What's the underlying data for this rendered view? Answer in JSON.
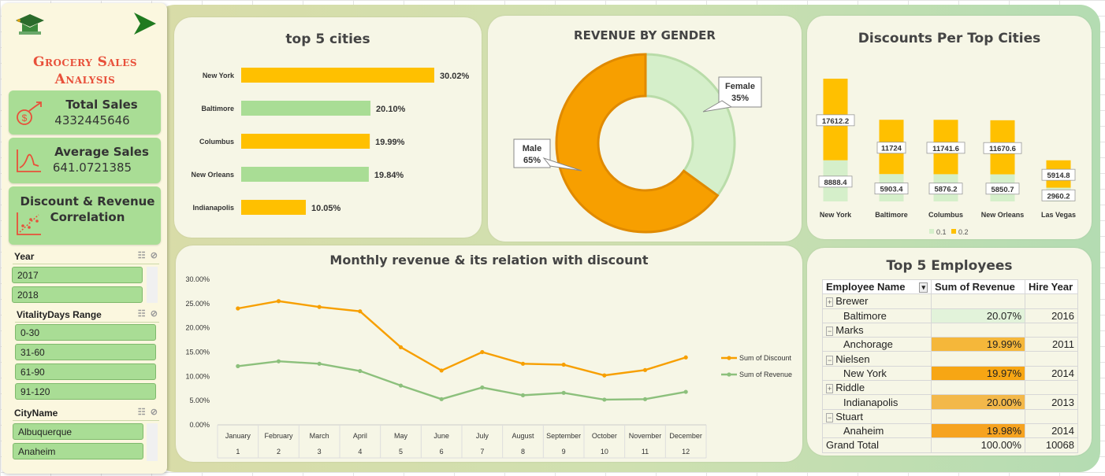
{
  "sidebar": {
    "title": "Grocery Sales Analysis",
    "kpis": [
      {
        "label": "Total Sales",
        "value": "4332445646"
      },
      {
        "label": "Average Sales",
        "value": "641.0721385"
      },
      {
        "label": "Discount & Revenue Correlation",
        "value": ""
      }
    ],
    "slicers": [
      {
        "label": "Year",
        "items": [
          "2017",
          "2018"
        ]
      },
      {
        "label": "VitalityDays Range",
        "items": [
          "0-30",
          "31-60",
          "61-90",
          "91-120"
        ]
      },
      {
        "label": "CityName",
        "items": [
          "Albuquerque",
          "Anaheim"
        ]
      }
    ]
  },
  "colors": {
    "orange": "#ffc000",
    "dark_orange": "#f79f00",
    "light_green": "#a9dd95",
    "pale_green": "#d5efca",
    "line_green": "#8cc07c",
    "title_red": "#e8503a"
  },
  "chart_data": [
    {
      "type": "bar",
      "orientation": "horizontal",
      "title": "top 5 cities",
      "categories": [
        "New York",
        "Baltimore",
        "Columbus",
        "New Orleans",
        "Indianapolis"
      ],
      "values": [
        30.02,
        20.1,
        19.99,
        19.84,
        10.05
      ],
      "labels": [
        "30.02%",
        "20.10%",
        "19.99%",
        "19.84%",
        "10.05%"
      ]
    },
    {
      "type": "pie",
      "title": "REVENUE BY GENDER",
      "categories": [
        "Female",
        "Male"
      ],
      "values": [
        35,
        65
      ],
      "labels": [
        "35%",
        "65%"
      ]
    },
    {
      "type": "bar",
      "stacked": true,
      "title": "Discounts Per Top Cities",
      "categories": [
        "New York",
        "Baltimore",
        "Columbus",
        "New Orleans",
        "Las Vegas"
      ],
      "series": [
        {
          "name": "0.1",
          "values": [
            8888.4,
            5903.4,
            5876.2,
            5850.7,
            2960.2
          ],
          "labels": [
            "8888.4",
            "5903.4",
            "5876.2",
            "5850.7",
            "2960.2"
          ]
        },
        {
          "name": "0.2",
          "values": [
            17612.2,
            11724,
            11741.6,
            11670.6,
            5914.8
          ],
          "labels": [
            "17612.2",
            "11724",
            "11741.6",
            "11670.6",
            "5914.8"
          ]
        }
      ],
      "legend": "bottom"
    },
    {
      "type": "line",
      "title": "Monthly revenue & its relation with discount",
      "categories": [
        "January",
        "February",
        "March",
        "April",
        "May",
        "June",
        "July",
        "August",
        "September",
        "October",
        "November",
        "December"
      ],
      "category_numbers": [
        "1",
        "2",
        "3",
        "4",
        "5",
        "6",
        "7",
        "8",
        "9",
        "10",
        "11",
        "12"
      ],
      "ylim": [
        0,
        30
      ],
      "yticks": [
        "0.00%",
        "5.00%",
        "10.00%",
        "15.00%",
        "20.00%",
        "25.00%",
        "30.00%"
      ],
      "series": [
        {
          "name": "Sum of Discount",
          "values": [
            24.0,
            25.5,
            24.3,
            23.4,
            16.0,
            11.2,
            15.0,
            12.6,
            12.4,
            10.2,
            11.3,
            13.9
          ]
        },
        {
          "name": "Sum of Revenue",
          "values": [
            12.1,
            13.1,
            12.6,
            11.1,
            8.1,
            5.3,
            7.7,
            6.1,
            6.6,
            5.2,
            5.3,
            6.8
          ]
        }
      ],
      "legend": "right"
    }
  ],
  "employees": {
    "title": "Top 5 Employees",
    "headers": [
      "Employee Name",
      "Sum of Revenue",
      "Hire Year"
    ],
    "rows": [
      {
        "name": "Brewer",
        "city": "Baltimore",
        "revenue": "20.07%",
        "year": "2016",
        "expanded": false
      },
      {
        "name": "Marks",
        "city": "Anchorage",
        "revenue": "19.99%",
        "year": "2011",
        "expanded": true
      },
      {
        "name": "Nielsen",
        "city": "New York",
        "revenue": "19.97%",
        "year": "2014",
        "expanded": true
      },
      {
        "name": "Riddle",
        "city": "Indianapolis",
        "revenue": "20.00%",
        "year": "2013",
        "expanded": false
      },
      {
        "name": "Stuart",
        "city": "Anaheim",
        "revenue": "19.98%",
        "year": "2014",
        "expanded": true
      }
    ],
    "total": {
      "label": "Grand Total",
      "revenue": "100.00%",
      "year": "10068"
    }
  }
}
